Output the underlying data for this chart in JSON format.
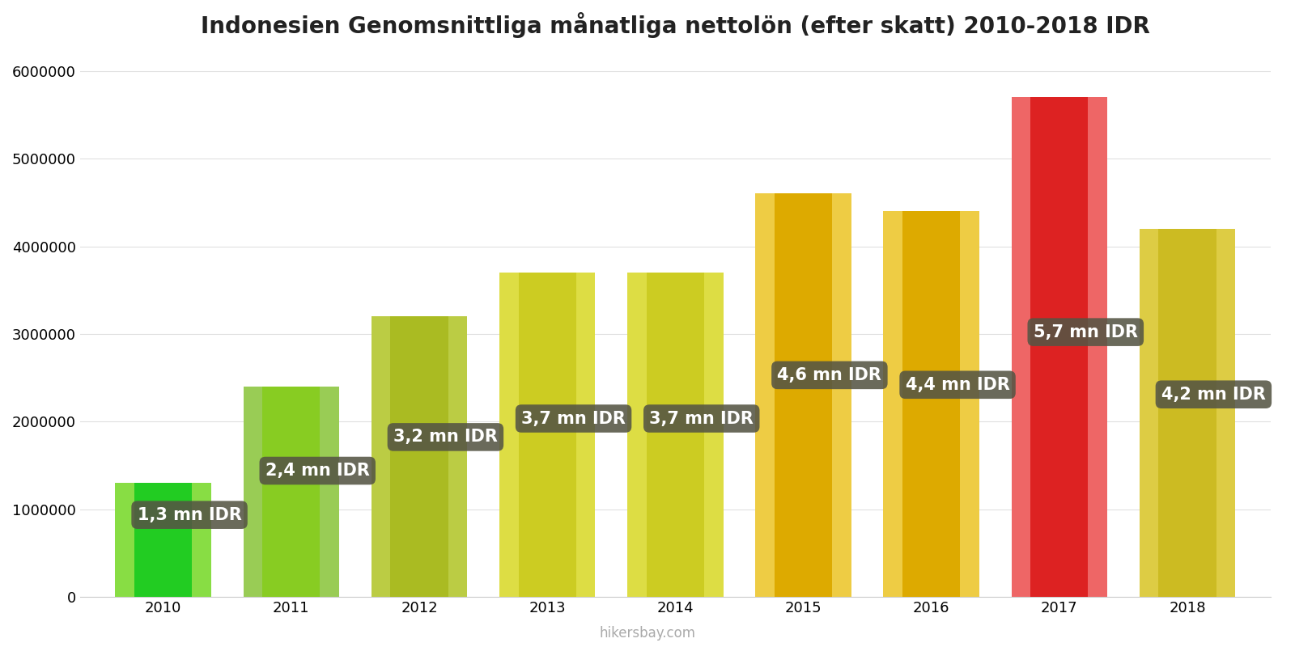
{
  "title": "Indonesien Genomsnittliga månatliga nettolön (efter skatt) 2010-2018 IDR",
  "years": [
    2010,
    2011,
    2012,
    2013,
    2014,
    2015,
    2016,
    2017,
    2018
  ],
  "values": [
    1300000,
    2400000,
    3200000,
    3700000,
    3700000,
    4600000,
    4400000,
    5700000,
    4200000
  ],
  "bg_values": [
    1300000,
    2400000,
    3200000,
    3700000,
    3700000,
    4600000,
    4400000,
    5700000,
    4200000
  ],
  "front_colors": [
    "#22cc22",
    "#88cc22",
    "#aabb22",
    "#cccc22",
    "#cccc22",
    "#ddaa00",
    "#ddaa00",
    "#dd2222",
    "#ccbb22"
  ],
  "back_colors": [
    "#88dd44",
    "#99cc55",
    "#bbcc44",
    "#dddd44",
    "#dddd44",
    "#eecc44",
    "#eecc44",
    "#ee6666",
    "#ddcc44"
  ],
  "label_texts": [
    "1,3 mn IDR",
    "2,4 mn IDR",
    "3,2 mn IDR",
    "3,7 mn IDR",
    "3,7 mn IDR",
    "4,6 mn IDR",
    "4,4 mn IDR",
    "5,7 mn IDR",
    "4,2 mn IDR"
  ],
  "label_bg_color": "#555544",
  "label_text_color": "#ffffff",
  "ylim": [
    0,
    6200000
  ],
  "yticks": [
    0,
    1000000,
    2000000,
    3000000,
    4000000,
    5000000,
    6000000
  ],
  "background_color": "#ffffff",
  "grid_color": "#e0e0e0",
  "watermark": "hikersbay.com",
  "title_fontsize": 20,
  "label_fontsize": 15,
  "tick_fontsize": 13,
  "watermark_fontsize": 12,
  "front_bar_width": 0.45,
  "back_bar_width": 0.75,
  "label_y_fracs": [
    0.72,
    0.6,
    0.57,
    0.55,
    0.55,
    0.55,
    0.55,
    0.53,
    0.55
  ]
}
